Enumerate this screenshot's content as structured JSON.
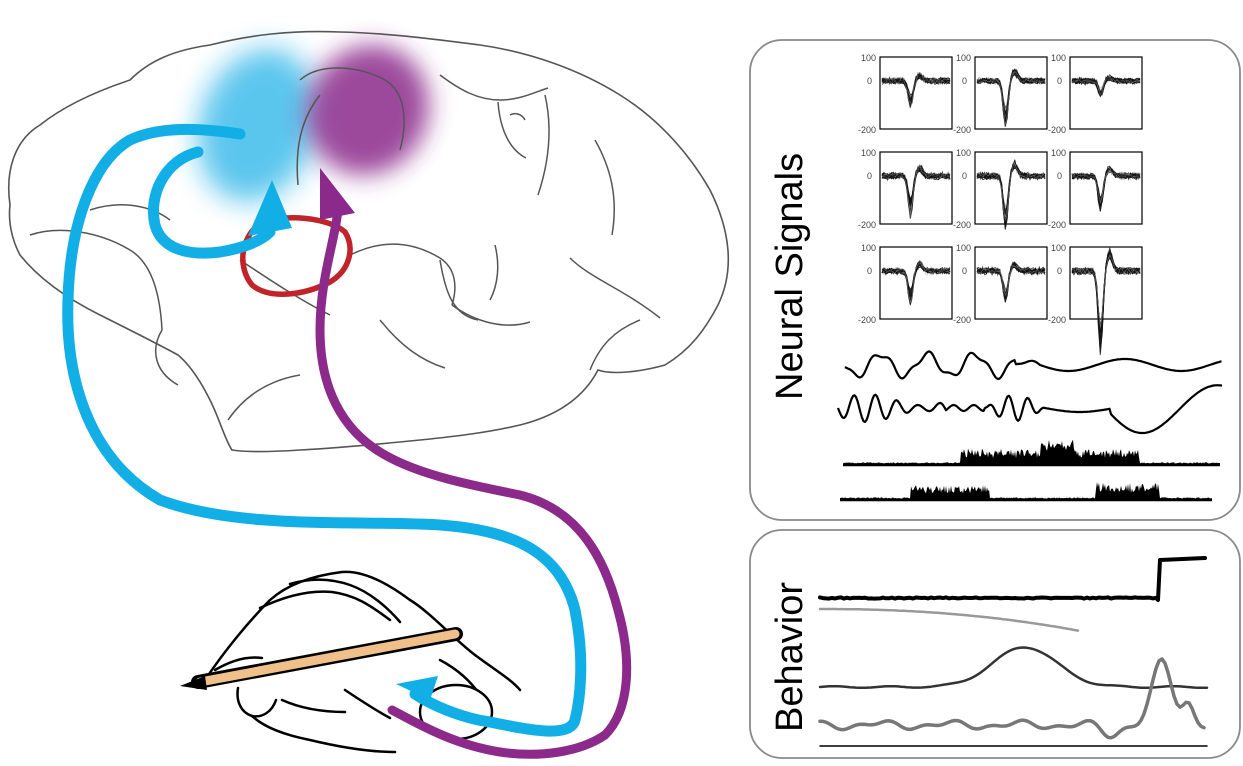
{
  "panels": {
    "neural": {
      "title": "Neural Signals",
      "tick_max": "100",
      "tick_mid": "0",
      "tick_min": "-200",
      "grid_rows": 3,
      "grid_cols": 3
    },
    "behavior": {
      "title": "Behavior"
    }
  },
  "colors": {
    "pathway_blue": "#12aee6",
    "pathway_purple": "#8b2a8b",
    "region_red": "#c0242a",
    "pencil": "#f0c08a",
    "brain_outline": "#555555",
    "panel_border": "#8a8a8a"
  },
  "icons": {
    "brain": "brain-outline",
    "hand": "hand-holding-pencil",
    "pencil": "pencil"
  }
}
